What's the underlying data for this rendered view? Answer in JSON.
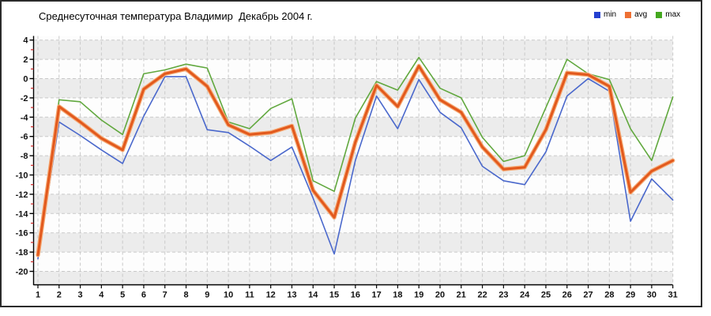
{
  "chart_data": {
    "type": "line",
    "title": "Среднесуточная температура Владимир  Декабрь 2004 г.",
    "xlabel": "",
    "ylabel": "",
    "categories": [
      "1",
      "2",
      "3",
      "4",
      "5",
      "6",
      "7",
      "8",
      "9",
      "10",
      "11",
      "12",
      "13",
      "14",
      "15",
      "16",
      "17",
      "18",
      "19",
      "20",
      "21",
      "22",
      "23",
      "24",
      "25",
      "26",
      "27",
      "28",
      "29",
      "30",
      "31"
    ],
    "yticks": [
      4,
      2,
      0,
      -2,
      -4,
      -6,
      -8,
      -10,
      -12,
      -14,
      -16,
      -18,
      -20
    ],
    "ylim": [
      -21.5,
      4.5
    ],
    "grid": "dashed",
    "legend_position": "top-right",
    "series": [
      {
        "name": "min",
        "swatch": "#2440d0",
        "line": "#4a68cc",
        "width": 1.6,
        "values": [
          -18.7,
          -4.5,
          -5.9,
          -7.4,
          -8.8,
          -3.9,
          0.2,
          0.2,
          -5.3,
          -5.6,
          -7.0,
          -8.5,
          -7.1,
          -12.4,
          -18.2,
          -8.5,
          -1.8,
          -5.2,
          -0.1,
          -3.5,
          -5.1,
          -9.1,
          -10.6,
          -11.0,
          -7.6,
          -1.8,
          0.0,
          -1.3,
          -14.8,
          -10.4,
          -12.6
        ]
      },
      {
        "name": "avg",
        "swatch": "#ee7033",
        "line": "#e2591d",
        "halo": "#f6ab76",
        "width": 3,
        "values": [
          -18.3,
          -2.9,
          -4.5,
          -6.2,
          -7.4,
          -1.1,
          0.5,
          1.0,
          -0.8,
          -4.8,
          -5.8,
          -5.6,
          -4.9,
          -11.6,
          -14.4,
          -6.6,
          -0.7,
          -2.9,
          1.3,
          -2.2,
          -3.5,
          -7.1,
          -9.4,
          -9.2,
          -5.3,
          0.6,
          0.4,
          -0.8,
          -11.8,
          -9.6,
          -8.5
        ]
      },
      {
        "name": "max",
        "swatch": "#44a81f",
        "line": "#61a83e",
        "width": 1.6,
        "values": [
          -18.1,
          -2.2,
          -2.4,
          -4.3,
          -5.8,
          0.5,
          0.9,
          1.5,
          1.1,
          -4.5,
          -5.2,
          -3.1,
          -2.1,
          -10.6,
          -11.7,
          -4.1,
          -0.3,
          -1.2,
          2.2,
          -1.0,
          -2.0,
          -6.1,
          -8.6,
          -8.0,
          -3.0,
          2.0,
          0.5,
          -0.1,
          -5.2,
          -8.5,
          -1.9
        ]
      }
    ],
    "style": {
      "band_fill": "#ececec",
      "plot_fill": "#fdfdfd",
      "gridline": "#c9c9c9",
      "axis": "#000000",
      "minor_tick": "#d22626",
      "text": "#111111"
    }
  }
}
